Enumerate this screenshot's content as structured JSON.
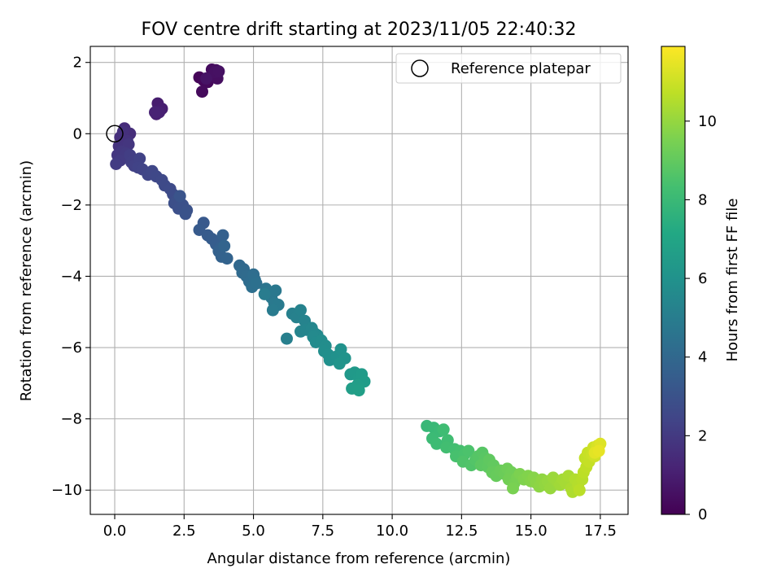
{
  "chart_data": {
    "type": "scatter",
    "title": "FOV centre drift starting at 2023/11/05 22:40:32",
    "xlabel": "Angular distance from reference (arcmin)",
    "ylabel": "Rotation from reference (arcmin)",
    "xlim": [
      -0.88,
      18.5
    ],
    "ylim": [
      -10.68,
      2.45
    ],
    "xticks": [
      0.0,
      2.5,
      5.0,
      7.5,
      10.0,
      12.5,
      15.0,
      17.5
    ],
    "xtick_labels": [
      "0.0",
      "2.5",
      "5.0",
      "7.5",
      "10.0",
      "12.5",
      "15.0",
      "17.5"
    ],
    "yticks": [
      2,
      0,
      -2,
      -4,
      -6,
      -8,
      -10
    ],
    "ytick_labels": [
      "2",
      "0",
      "−2",
      "−4",
      "−6",
      "−8",
      "−10"
    ],
    "grid": true,
    "legend": {
      "placement": "top-right",
      "entries": [
        {
          "label": "Reference platepar",
          "marker": "open-circle"
        }
      ]
    },
    "reference_point": {
      "x": 0.0,
      "y": 0.0
    },
    "colorbar": {
      "label": "Hours from first FF file",
      "colormap": "viridis",
      "range": [
        0,
        11.9
      ],
      "ticks": [
        0,
        2,
        4,
        6,
        8,
        10
      ],
      "tick_labels": [
        "0",
        "2",
        "4",
        "6",
        "8",
        "10"
      ]
    },
    "series": [
      {
        "columns": [
          "x",
          "y",
          "hours"
        ],
        "points": [
          [
            3.05,
            1.58,
            0.15
          ],
          [
            3.2,
            1.5,
            0.2
          ],
          [
            3.35,
            1.45,
            0.25
          ],
          [
            3.15,
            1.18,
            0.3
          ],
          [
            3.5,
            1.8,
            0.35
          ],
          [
            3.65,
            1.78,
            0.4
          ],
          [
            3.7,
            1.55,
            0.45
          ],
          [
            3.6,
            1.72,
            0.5
          ],
          [
            3.75,
            1.75,
            0.55
          ],
          [
            3.3,
            1.55,
            0.6
          ],
          [
            1.55,
            0.85,
            0.95
          ],
          [
            1.7,
            0.7,
            1.0
          ],
          [
            1.5,
            0.55,
            1.05
          ],
          [
            1.6,
            0.6,
            1.1
          ],
          [
            1.45,
            0.6,
            1.15
          ],
          [
            0.35,
            0.15,
            1.5
          ],
          [
            0.55,
            0.0,
            1.55
          ],
          [
            0.2,
            -0.1,
            1.6
          ],
          [
            0.3,
            0.05,
            1.65
          ],
          [
            0.45,
            -0.2,
            1.7
          ],
          [
            0.15,
            -0.35,
            1.75
          ],
          [
            0.3,
            -0.4,
            1.8
          ],
          [
            0.5,
            -0.3,
            1.85
          ],
          [
            0.1,
            -0.6,
            1.9
          ],
          [
            0.25,
            -0.5,
            1.95
          ],
          [
            0.4,
            -0.55,
            2.0
          ],
          [
            0.2,
            -0.75,
            2.05
          ],
          [
            0.05,
            -0.85,
            2.1
          ],
          [
            0.55,
            -0.6,
            2.15
          ],
          [
            0.6,
            -0.8,
            2.2
          ],
          [
            0.7,
            -0.9,
            2.25
          ],
          [
            0.9,
            -0.7,
            2.3
          ],
          [
            0.85,
            -0.95,
            2.35
          ],
          [
            1.0,
            -1.0,
            2.4
          ],
          [
            1.2,
            -1.15,
            2.45
          ],
          [
            1.35,
            -1.05,
            2.5
          ],
          [
            1.5,
            -1.2,
            2.55
          ],
          [
            1.7,
            -1.3,
            2.6
          ],
          [
            1.8,
            -1.45,
            2.65
          ],
          [
            2.0,
            -1.55,
            2.7
          ],
          [
            2.1,
            -1.7,
            2.75
          ],
          [
            2.25,
            -1.85,
            2.8
          ],
          [
            2.15,
            -1.95,
            2.85
          ],
          [
            2.3,
            -2.1,
            2.9
          ],
          [
            2.45,
            -2.0,
            2.95
          ],
          [
            2.6,
            -2.15,
            3.0
          ],
          [
            2.55,
            -2.25,
            3.05
          ],
          [
            2.35,
            -1.75,
            3.1
          ],
          [
            3.2,
            -2.5,
            3.3
          ],
          [
            3.05,
            -2.7,
            3.35
          ],
          [
            3.35,
            -2.85,
            3.4
          ],
          [
            3.5,
            -2.95,
            3.45
          ],
          [
            3.65,
            -3.1,
            3.5
          ],
          [
            3.8,
            -3.2,
            3.55
          ],
          [
            3.9,
            -2.85,
            3.6
          ],
          [
            3.75,
            -3.3,
            3.65
          ],
          [
            3.85,
            -3.45,
            3.7
          ],
          [
            4.05,
            -3.5,
            3.75
          ],
          [
            3.95,
            -3.15,
            3.8
          ],
          [
            4.5,
            -3.7,
            4.0
          ],
          [
            4.65,
            -3.8,
            4.05
          ],
          [
            4.6,
            -3.9,
            4.1
          ],
          [
            4.75,
            -4.0,
            4.15
          ],
          [
            4.85,
            -4.15,
            4.2
          ],
          [
            5.0,
            -3.95,
            4.25
          ],
          [
            5.05,
            -4.1,
            4.3
          ],
          [
            4.95,
            -4.3,
            4.35
          ],
          [
            5.1,
            -4.2,
            4.4
          ],
          [
            5.45,
            -4.35,
            4.6
          ],
          [
            5.55,
            -4.45,
            4.65
          ],
          [
            5.65,
            -4.6,
            4.7
          ],
          [
            5.8,
            -4.4,
            4.75
          ],
          [
            5.75,
            -4.75,
            4.8
          ],
          [
            5.9,
            -4.8,
            4.85
          ],
          [
            5.7,
            -4.95,
            4.9
          ],
          [
            5.4,
            -4.5,
            4.95
          ],
          [
            6.2,
            -5.75,
            5.1
          ],
          [
            6.4,
            -5.05,
            5.15
          ],
          [
            6.55,
            -5.15,
            5.2
          ],
          [
            6.7,
            -4.95,
            5.25
          ],
          [
            6.85,
            -5.25,
            5.3
          ],
          [
            6.7,
            -5.55,
            5.35
          ],
          [
            6.9,
            -5.5,
            5.4
          ],
          [
            7.1,
            -5.45,
            5.45
          ],
          [
            7.2,
            -5.6,
            5.5
          ],
          [
            7.3,
            -5.65,
            5.55
          ],
          [
            7.15,
            -5.7,
            5.6
          ],
          [
            7.25,
            -5.85,
            5.65
          ],
          [
            7.45,
            -5.8,
            5.7
          ],
          [
            7.6,
            -5.95,
            5.75
          ],
          [
            7.55,
            -6.1,
            5.8
          ],
          [
            7.7,
            -6.2,
            5.85
          ],
          [
            7.75,
            -6.35,
            5.9
          ],
          [
            8.0,
            -6.25,
            5.95
          ],
          [
            8.15,
            -6.05,
            6.0
          ],
          [
            8.3,
            -6.3,
            6.05
          ],
          [
            8.1,
            -6.45,
            6.1
          ],
          [
            8.5,
            -6.75,
            6.3
          ],
          [
            8.65,
            -6.7,
            6.35
          ],
          [
            8.8,
            -6.85,
            6.4
          ],
          [
            8.9,
            -6.75,
            6.45
          ],
          [
            9.0,
            -6.95,
            6.5
          ],
          [
            8.75,
            -7.05,
            6.55
          ],
          [
            8.55,
            -7.15,
            6.6
          ],
          [
            8.8,
            -7.2,
            6.65
          ],
          [
            11.25,
            -8.2,
            7.9
          ],
          [
            11.5,
            -8.25,
            7.95
          ],
          [
            11.7,
            -8.35,
            8.0
          ],
          [
            11.45,
            -8.55,
            8.05
          ],
          [
            11.6,
            -8.7,
            8.1
          ],
          [
            11.85,
            -8.3,
            8.15
          ],
          [
            12.0,
            -8.6,
            8.2
          ],
          [
            11.95,
            -8.8,
            8.25
          ],
          [
            12.25,
            -8.85,
            8.3
          ],
          [
            12.45,
            -8.9,
            8.35
          ],
          [
            12.3,
            -9.05,
            8.4
          ],
          [
            12.6,
            -9.0,
            8.45
          ],
          [
            12.75,
            -8.9,
            8.5
          ],
          [
            12.55,
            -9.2,
            8.55
          ],
          [
            12.85,
            -9.3,
            8.6
          ],
          [
            13.0,
            -9.15,
            8.65
          ],
          [
            13.1,
            -9.05,
            8.7
          ],
          [
            13.25,
            -8.95,
            8.75
          ],
          [
            13.35,
            -9.1,
            8.8
          ],
          [
            13.2,
            -9.3,
            8.85
          ],
          [
            13.45,
            -9.35,
            8.9
          ],
          [
            13.5,
            -9.15,
            8.95
          ],
          [
            13.65,
            -9.3,
            9.0
          ],
          [
            13.6,
            -9.5,
            9.05
          ],
          [
            13.75,
            -9.6,
            9.1
          ],
          [
            13.9,
            -9.45,
            9.15
          ],
          [
            14.05,
            -9.55,
            9.2
          ],
          [
            14.15,
            -9.4,
            9.25
          ],
          [
            14.3,
            -9.5,
            9.3
          ],
          [
            14.2,
            -9.7,
            9.35
          ],
          [
            14.4,
            -9.8,
            9.4
          ],
          [
            14.5,
            -9.65,
            9.45
          ],
          [
            14.35,
            -9.95,
            9.5
          ],
          [
            14.6,
            -9.55,
            9.55
          ],
          [
            14.75,
            -9.7,
            9.6
          ],
          [
            14.9,
            -9.6,
            9.65
          ],
          [
            15.0,
            -9.75,
            9.7
          ],
          [
            15.1,
            -9.65,
            9.75
          ],
          [
            15.2,
            -9.8,
            9.8
          ],
          [
            15.3,
            -9.9,
            9.85
          ],
          [
            15.4,
            -9.7,
            9.9
          ],
          [
            15.5,
            -9.85,
            9.95
          ],
          [
            15.6,
            -9.75,
            10.0
          ],
          [
            15.7,
            -9.95,
            10.05
          ],
          [
            15.8,
            -9.65,
            10.1
          ],
          [
            15.95,
            -9.75,
            10.15
          ],
          [
            16.05,
            -9.85,
            10.2
          ],
          [
            16.15,
            -9.7,
            10.25
          ],
          [
            16.25,
            -9.8,
            10.3
          ],
          [
            16.35,
            -9.6,
            10.35
          ],
          [
            16.45,
            -9.95,
            10.4
          ],
          [
            16.5,
            -10.05,
            10.45
          ],
          [
            16.6,
            -9.7,
            10.5
          ],
          [
            16.7,
            -9.85,
            10.55
          ],
          [
            16.85,
            -9.7,
            10.6
          ],
          [
            16.75,
            -10.0,
            10.65
          ],
          [
            16.9,
            -9.5,
            10.7
          ],
          [
            17.0,
            -9.35,
            10.75
          ],
          [
            16.95,
            -9.1,
            10.8
          ],
          [
            17.1,
            -9.2,
            10.85
          ],
          [
            17.05,
            -8.95,
            10.9
          ],
          [
            17.2,
            -9.0,
            10.95
          ],
          [
            17.25,
            -8.8,
            11.0
          ],
          [
            17.3,
            -9.05,
            11.05
          ],
          [
            17.35,
            -8.85,
            11.1
          ],
          [
            17.4,
            -8.75,
            11.2
          ],
          [
            17.5,
            -8.7,
            11.3
          ],
          [
            17.3,
            -8.95,
            11.4
          ],
          [
            17.45,
            -8.9,
            11.5
          ]
        ]
      }
    ]
  }
}
